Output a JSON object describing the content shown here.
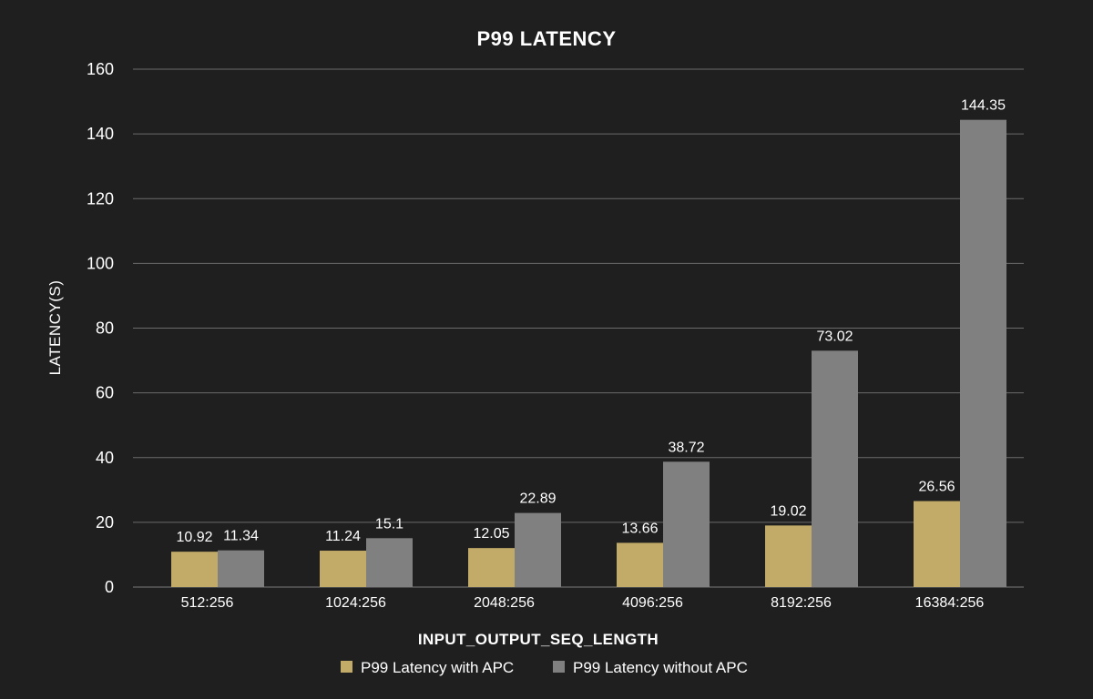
{
  "chart_data": {
    "type": "bar",
    "title": "P99 LATENCY",
    "xlabel": "INPUT_OUTPUT_SEQ_LENGTH",
    "ylabel": "LATENCY(S)",
    "categories": [
      "512:256",
      "1024:256",
      "2048:256",
      "4096:256",
      "8192:256",
      "16384:256"
    ],
    "series": [
      {
        "name": "P99 Latency with APC",
        "values": [
          10.92,
          11.24,
          12.05,
          13.66,
          19.02,
          26.56
        ],
        "labels": [
          "10.92",
          "11.24",
          "12.05",
          "13.66",
          "19.02",
          "26.56"
        ],
        "color": "#c2aa68"
      },
      {
        "name": "P99 Latency without APC",
        "values": [
          11.34,
          15.1,
          22.89,
          38.72,
          73.02,
          144.35
        ],
        "labels": [
          "11.34",
          "15.1",
          "22.89",
          "38.72",
          "73.02",
          "144.35"
        ],
        "color": "#808080"
      }
    ],
    "ylim": [
      0,
      160
    ],
    "yticks": [
      0,
      20,
      40,
      60,
      80,
      100,
      120,
      140,
      160
    ],
    "grid": true,
    "legend_position": "bottom"
  },
  "theme": {
    "background": "#1f1f1f",
    "grid": "#6b6b6b",
    "text": "#ffffff"
  }
}
